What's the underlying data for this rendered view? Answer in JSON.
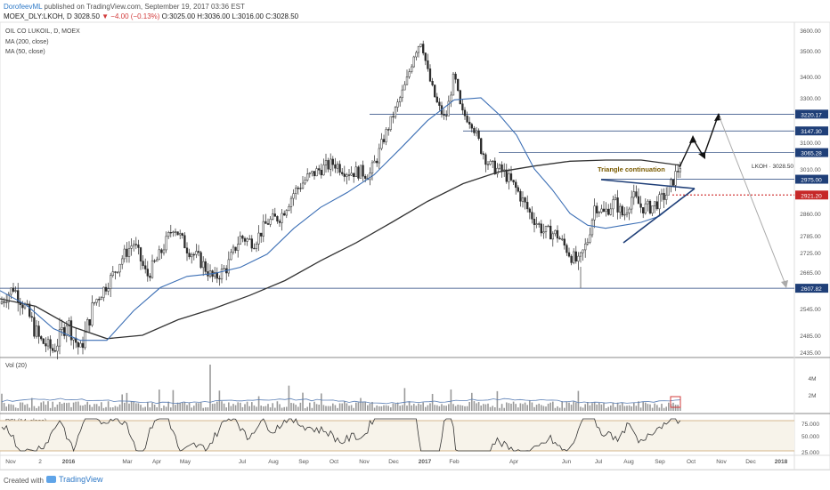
{
  "header": {
    "author": "DorofeevML",
    "published": " published on TradingView.com, September 19, 2017 03:36 EST",
    "symbol": "MOEX_DLY:LKOH, D 3028.50",
    "change": "▼ −4.00 (−0.13%)",
    "ohlc": " O:3025.00 H:3036.00 L:3016.00 C:3028.50"
  },
  "panels": {
    "main_title": "OIL CO LUKOIL, D, MOEX",
    "ma200": "MA (200, close)",
    "ma50": "MA (50, close)",
    "vol": "Vol (20)",
    "rsi": "RSI (14, close)"
  },
  "annotations": {
    "triangle": "Triangle continuation",
    "price_tag": "LKOH · 3028.50"
  },
  "footer": {
    "created": "Created with",
    "brand": "TradingView"
  },
  "colors": {
    "ma50": "#3c6fb5",
    "ma200": "#333333",
    "candles": "#2a2a2a",
    "levels": "#1f3f78",
    "dotted": "#d23b3b"
  },
  "chart_data": [
    {
      "type": "candlestick",
      "title": "OIL CO LUKOIL, D, MOEX",
      "x_ticks": [
        "Nov",
        "2",
        "2016",
        "Mar",
        "Apr",
        "May",
        "Jul",
        "Aug",
        "Sep",
        "Oct",
        "Nov",
        "Dec",
        "2017",
        "Feb",
        "Apr",
        "Jun",
        "Jul",
        "Aug",
        "Sep",
        "Oct",
        "Nov",
        "Dec",
        "2018"
      ],
      "y_ticks": [
        2435,
        2485,
        2545,
        2605,
        2665,
        2725,
        2785,
        2860,
        2925,
        3010,
        3100,
        3200,
        3300,
        3400,
        3500,
        3600
      ],
      "ylim": [
        2400,
        3620
      ],
      "series": [
        {
          "name": "Price (approx. close)",
          "points": [
            [
              0,
              2560
            ],
            [
              15,
              2610
            ],
            [
              30,
              2540
            ],
            [
              45,
              2470
            ],
            [
              60,
              2440
            ],
            [
              75,
              2520
            ],
            [
              90,
              2440
            ],
            [
              105,
              2560
            ],
            [
              120,
              2620
            ],
            [
              135,
              2700
            ],
            [
              150,
              2760
            ],
            [
              165,
              2650
            ],
            [
              180,
              2720
            ],
            [
              195,
              2820
            ],
            [
              210,
              2740
            ],
            [
              225,
              2700
            ],
            [
              240,
              2640
            ],
            [
              255,
              2680
            ],
            [
              270,
              2780
            ],
            [
              285,
              2760
            ],
            [
              300,
              2830
            ],
            [
              315,
              2850
            ],
            [
              330,
              2930
            ],
            [
              345,
              2980
            ],
            [
              360,
              3010
            ],
            [
              375,
              3030
            ],
            [
              390,
              3000
            ],
            [
              405,
              3000
            ],
            [
              415,
              2990
            ],
            [
              425,
              3060
            ],
            [
              440,
              3200
            ],
            [
              455,
              3360
            ],
            [
              465,
              3490
            ],
            [
              473,
              3550
            ],
            [
              480,
              3420
            ],
            [
              490,
              3280
            ],
            [
              500,
              3190
            ],
            [
              510,
              3410
            ],
            [
              518,
              3230
            ],
            [
              530,
              3180
            ],
            [
              540,
              3080
            ],
            [
              550,
              3020
            ],
            [
              565,
              3000
            ],
            [
              580,
              2940
            ],
            [
              595,
              2860
            ],
            [
              610,
              2800
            ],
            [
              625,
              2790
            ],
            [
              640,
              2720
            ],
            [
              650,
              2690
            ],
            [
              660,
              2770
            ],
            [
              668,
              2890
            ],
            [
              678,
              2860
            ],
            [
              690,
              2900
            ],
            [
              700,
              2850
            ],
            [
              710,
              2920
            ],
            [
              720,
              2880
            ],
            [
              730,
              2880
            ],
            [
              740,
              2900
            ],
            [
              750,
              2930
            ],
            [
              760,
              3000
            ],
            [
              765,
              3030
            ]
          ]
        },
        {
          "name": "MA (50, close)",
          "points": [
            [
              0,
              2600
            ],
            [
              30,
              2555
            ],
            [
              60,
              2500
            ],
            [
              90,
              2470
            ],
            [
              120,
              2470
            ],
            [
              150,
              2540
            ],
            [
              180,
              2610
            ],
            [
              210,
              2650
            ],
            [
              240,
              2660
            ],
            [
              270,
              2680
            ],
            [
              300,
              2720
            ],
            [
              330,
              2810
            ],
            [
              360,
              2880
            ],
            [
              390,
              2930
            ],
            [
              420,
              2990
            ],
            [
              450,
              3080
            ],
            [
              480,
              3190
            ],
            [
              510,
              3290
            ],
            [
              540,
              3300
            ],
            [
              560,
              3220
            ],
            [
              580,
              3130
            ],
            [
              600,
              3010
            ],
            [
              620,
              2940
            ],
            [
              640,
              2860
            ],
            [
              660,
              2820
            ],
            [
              680,
              2810
            ],
            [
              700,
              2820
            ],
            [
              720,
              2830
            ],
            [
              740,
              2850
            ],
            [
              765,
              2910
            ]
          ]
        },
        {
          "name": "MA (200, close)",
          "points": [
            [
              0,
              2575
            ],
            [
              40,
              2552
            ],
            [
              80,
              2505
            ],
            [
              120,
              2475
            ],
            [
              160,
              2485
            ],
            [
              200,
              2520
            ],
            [
              240,
              2545
            ],
            [
              280,
              2585
            ],
            [
              320,
              2635
            ],
            [
              360,
              2700
            ],
            [
              400,
              2760
            ],
            [
              440,
              2830
            ],
            [
              480,
              2900
            ],
            [
              520,
              2960
            ],
            [
              560,
              3000
            ],
            [
              600,
              3020
            ],
            [
              640,
              3036
            ],
            [
              680,
              3040
            ],
            [
              720,
              3040
            ],
            [
              765,
              3022
            ]
          ]
        }
      ],
      "levels": [
        {
          "label": "3220.17",
          "value": 3220.17
        },
        {
          "label": "3147.30",
          "value": 3147.3
        },
        {
          "label": "3065.28",
          "value": 3065.28
        },
        {
          "label": "2975.00",
          "value": 2975.0
        },
        {
          "label": "2921.20",
          "value": 2921.2
        },
        {
          "label": "2607.82",
          "value": 2607.82
        }
      ],
      "current_price": 3028.5
    },
    {
      "type": "bar",
      "title": "Vol (20)",
      "y_ticks": [
        "4M",
        "2M"
      ],
      "ylim": [
        0,
        5
      ]
    },
    {
      "type": "line",
      "title": "RSI (14, close)",
      "y_ticks": [
        75.0,
        50.0,
        25.0
      ],
      "ylim": [
        20,
        80
      ]
    }
  ]
}
